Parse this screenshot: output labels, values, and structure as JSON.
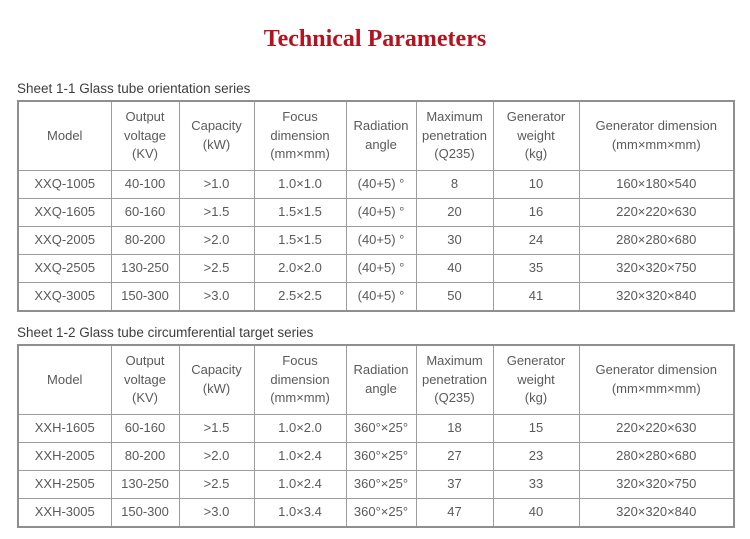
{
  "page": {
    "title": "Technical Parameters"
  },
  "colors": {
    "title_red": "#b5121f",
    "table_text": "#5a5a5a",
    "table_border": "#9c9c9c",
    "label_text": "#3d3d3d",
    "background": "#ffffff"
  },
  "tables": [
    {
      "caption": "Sheet 1-1 Glass tube orientation series",
      "columns": [
        "Model",
        "Output\nvoltage\n(KV)",
        "Capacity\n(kW)",
        "Focus\ndimension\n(mm×mm)",
        "Radiation\nangle",
        "Maximum\npenetration\n(Q235)",
        "Generator\nweight\n(kg)",
        "Generator dimension\n(mm×mm×mm)"
      ],
      "rows": [
        [
          "XXQ-1005",
          "40-100",
          ">1.0",
          "1.0×1.0",
          "(40+5) °",
          "8",
          "10",
          "160×180×540"
        ],
        [
          "XXQ-1605",
          "60-160",
          ">1.5",
          "1.5×1.5",
          "(40+5) °",
          "20",
          "16",
          "220×220×630"
        ],
        [
          "XXQ-2005",
          "80-200",
          ">2.0",
          "1.5×1.5",
          "(40+5) °",
          "30",
          "24",
          "280×280×680"
        ],
        [
          "XXQ-2505",
          "130-250",
          ">2.5",
          "2.0×2.0",
          "(40+5) °",
          "40",
          "35",
          "320×320×750"
        ],
        [
          "XXQ-3005",
          "150-300",
          ">3.0",
          "2.5×2.5",
          "(40+5) °",
          "50",
          "41",
          "320×320×840"
        ]
      ]
    },
    {
      "caption": "Sheet 1-2 Glass tube circumferential target series",
      "columns": [
        "Model",
        "Output\nvoltage\n(KV)",
        "Capacity\n(kW)",
        "Focus\ndimension\n(mm×mm)",
        "Radiation\nangle",
        "Maximum\npenetration\n(Q235)",
        "Generator\nweight\n(kg)",
        "Generator dimension\n(mm×mm×mm)"
      ],
      "rows": [
        [
          "XXH-1605",
          "60-160",
          ">1.5",
          "1.0×2.0",
          "360°×25°",
          "18",
          "15",
          "220×220×630"
        ],
        [
          "XXH-2005",
          "80-200",
          ">2.0",
          "1.0×2.4",
          "360°×25°",
          "27",
          "23",
          "280×280×680"
        ],
        [
          "XXH-2505",
          "130-250",
          ">2.5",
          "1.0×2.4",
          "360°×25°",
          "37",
          "33",
          "320×320×750"
        ],
        [
          "XXH-3005",
          "150-300",
          ">3.0",
          "1.0×3.4",
          "360°×25°",
          "47",
          "40",
          "320×320×840"
        ]
      ]
    }
  ]
}
